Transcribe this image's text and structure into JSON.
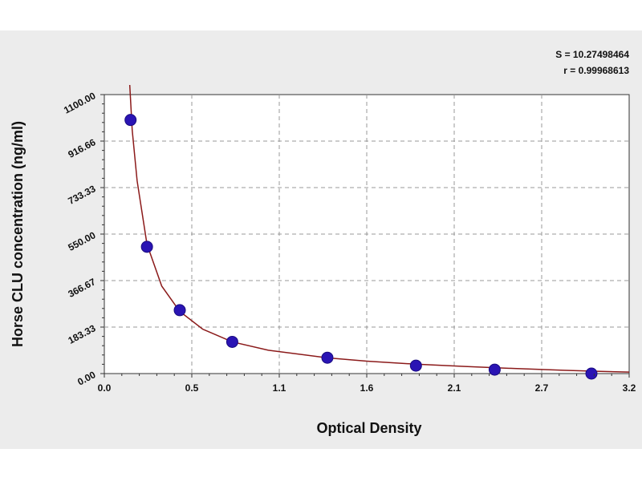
{
  "chart_data": {
    "type": "scatter",
    "xlabel": "Optical Density",
    "ylabel": "Horse CLU concentration (ng/ml)",
    "xlim": [
      0,
      3.2
    ],
    "ylim": [
      0,
      1100
    ],
    "x_ticks": [
      "0.0",
      "0.5",
      "1.1",
      "1.6",
      "2.1",
      "2.7",
      "3.2"
    ],
    "y_ticks": [
      "0.00",
      "183.33",
      "366.67",
      "550.00",
      "733.33",
      "916.66",
      "1100.00"
    ],
    "grid": true,
    "series": [
      {
        "values": [
          {
            "x": 0.16,
            "y": 1000
          },
          {
            "x": 0.26,
            "y": 500
          },
          {
            "x": 0.46,
            "y": 250
          },
          {
            "x": 0.78,
            "y": 125
          },
          {
            "x": 1.36,
            "y": 62.5
          },
          {
            "x": 1.9,
            "y": 31.25
          },
          {
            "x": 2.38,
            "y": 15.6
          },
          {
            "x": 2.97,
            "y": 0
          }
        ],
        "point_color": "#2a14b4"
      }
    ],
    "fit_curve": {
      "color": "#8b1a1a",
      "points": [
        {
          "x": 0.155,
          "y": 1180
        },
        {
          "x": 0.17,
          "y": 960
        },
        {
          "x": 0.2,
          "y": 760
        },
        {
          "x": 0.26,
          "y": 510
        },
        {
          "x": 0.35,
          "y": 345
        },
        {
          "x": 0.46,
          "y": 245
        },
        {
          "x": 0.6,
          "y": 175
        },
        {
          "x": 0.78,
          "y": 125
        },
        {
          "x": 1.0,
          "y": 92
        },
        {
          "x": 1.36,
          "y": 62
        },
        {
          "x": 1.6,
          "y": 49
        },
        {
          "x": 1.9,
          "y": 37
        },
        {
          "x": 2.2,
          "y": 28
        },
        {
          "x": 2.5,
          "y": 20
        },
        {
          "x": 2.8,
          "y": 13
        },
        {
          "x": 3.0,
          "y": 9
        },
        {
          "x": 3.2,
          "y": 6
        }
      ]
    },
    "annotations": [
      "S = 10.27498464",
      "r = 0.99968613"
    ],
    "colors": {
      "background": "#ececec",
      "plot_area": "#ffffff",
      "grid": "#999999"
    }
  }
}
